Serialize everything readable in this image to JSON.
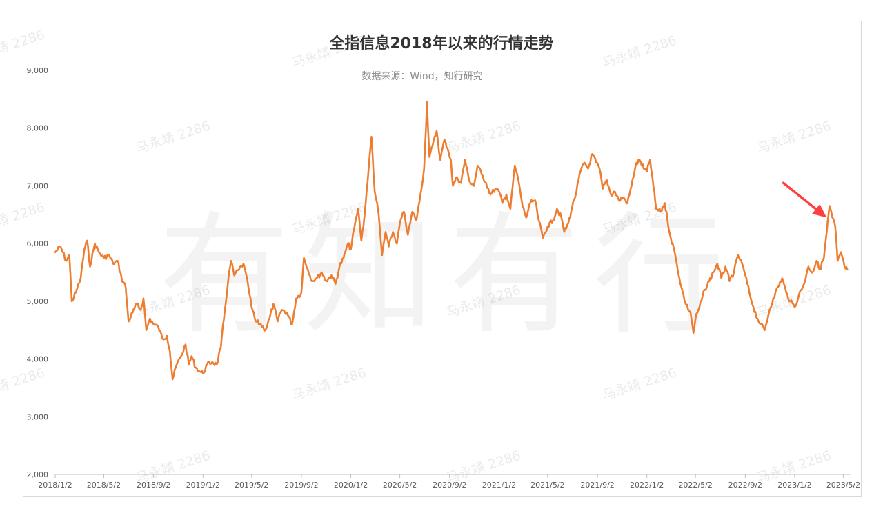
{
  "chart_data": {
    "type": "line",
    "title": "全指信息2018年以来的行情走势",
    "subtitle": "数据来源：Wind，知行研究",
    "xlabel": "",
    "ylabel": "",
    "ylim": [
      2000,
      9000
    ],
    "yticks": [
      2000,
      3000,
      4000,
      5000,
      6000,
      7000,
      8000,
      9000
    ],
    "ytick_labels": [
      "2,000",
      "3,000",
      "4,000",
      "5,000",
      "6,000",
      "7,000",
      "8,000",
      "9,000"
    ],
    "xlim": [
      "2018-01-02",
      "2023-05-20"
    ],
    "xticks": [
      "2018-01-02",
      "2018-05-02",
      "2018-09-02",
      "2019-01-02",
      "2019-05-02",
      "2019-09-02",
      "2020-01-02",
      "2020-05-02",
      "2020-09-02",
      "2021-01-02",
      "2021-05-02",
      "2021-09-02",
      "2022-01-02",
      "2022-05-02",
      "2022-09-02",
      "2023-01-02",
      "2023-05-02"
    ],
    "xtick_labels": [
      "2018/1/2",
      "2018/5/2",
      "2018/9/2",
      "2019/1/2",
      "2019/5/2",
      "2019/9/2",
      "2020/1/2",
      "2020/5/2",
      "2020/9/2",
      "2021/1/2",
      "2021/5/2",
      "2021/9/2",
      "2022/1/2",
      "2022/5/2",
      "2022/9/2",
      "2023/1/2",
      "2023/5/2"
    ],
    "grid": false,
    "series": [
      {
        "name": "",
        "color": "#ed7d31",
        "points": [
          [
            "2018-01-02",
            5850
          ],
          [
            "2018-01-15",
            5950
          ],
          [
            "2018-01-29",
            5700
          ],
          [
            "2018-02-06",
            5800
          ],
          [
            "2018-02-12",
            5000
          ],
          [
            "2018-02-22",
            5150
          ],
          [
            "2018-03-06",
            5400
          ],
          [
            "2018-03-15",
            5900
          ],
          [
            "2018-03-22",
            6050
          ],
          [
            "2018-03-29",
            5600
          ],
          [
            "2018-04-10",
            6000
          ],
          [
            "2018-04-20",
            5850
          ],
          [
            "2018-05-02",
            5750
          ],
          [
            "2018-05-15",
            5800
          ],
          [
            "2018-05-25",
            5650
          ],
          [
            "2018-06-05",
            5700
          ],
          [
            "2018-06-15",
            5400
          ],
          [
            "2018-06-25",
            5250
          ],
          [
            "2018-07-02",
            4650
          ],
          [
            "2018-07-12",
            4800
          ],
          [
            "2018-07-22",
            4950
          ],
          [
            "2018-08-01",
            4850
          ],
          [
            "2018-08-08",
            5050
          ],
          [
            "2018-08-15",
            4500
          ],
          [
            "2018-08-24",
            4700
          ],
          [
            "2018-09-02",
            4600
          ],
          [
            "2018-09-14",
            4550
          ],
          [
            "2018-09-24",
            4350
          ],
          [
            "2018-10-05",
            4400
          ],
          [
            "2018-10-12",
            4150
          ],
          [
            "2018-10-19",
            3650
          ],
          [
            "2018-10-29",
            3900
          ],
          [
            "2018-11-09",
            4050
          ],
          [
            "2018-11-20",
            4250
          ],
          [
            "2018-11-28",
            3900
          ],
          [
            "2018-12-05",
            4050
          ],
          [
            "2018-12-15",
            3850
          ],
          [
            "2018-12-26",
            3780
          ],
          [
            "2019-01-02",
            3750
          ],
          [
            "2019-01-12",
            3900
          ],
          [
            "2019-01-25",
            3950
          ],
          [
            "2019-02-05",
            3900
          ],
          [
            "2019-02-15",
            4200
          ],
          [
            "2019-02-25",
            4850
          ],
          [
            "2019-03-05",
            5350
          ],
          [
            "2019-03-12",
            5700
          ],
          [
            "2019-03-20",
            5450
          ],
          [
            "2019-04-01",
            5550
          ],
          [
            "2019-04-12",
            5650
          ],
          [
            "2019-04-24",
            5250
          ],
          [
            "2019-05-02",
            4900
          ],
          [
            "2019-05-12",
            4650
          ],
          [
            "2019-05-25",
            4600
          ],
          [
            "2019-06-05",
            4500
          ],
          [
            "2019-06-15",
            4700
          ],
          [
            "2019-06-25",
            4950
          ],
          [
            "2019-07-05",
            4650
          ],
          [
            "2019-07-15",
            4850
          ],
          [
            "2019-07-28",
            4800
          ],
          [
            "2019-08-10",
            4600
          ],
          [
            "2019-08-20",
            5050
          ],
          [
            "2019-09-02",
            5150
          ],
          [
            "2019-09-08",
            5750
          ],
          [
            "2019-09-18",
            5550
          ],
          [
            "2019-09-28",
            5350
          ],
          [
            "2019-10-10",
            5400
          ],
          [
            "2019-10-22",
            5500
          ],
          [
            "2019-11-02",
            5350
          ],
          [
            "2019-11-15",
            5450
          ],
          [
            "2019-11-25",
            5300
          ],
          [
            "2019-12-05",
            5600
          ],
          [
            "2019-12-15",
            5750
          ],
          [
            "2019-12-26",
            6000
          ],
          [
            "2020-01-02",
            5900
          ],
          [
            "2020-01-10",
            6250
          ],
          [
            "2020-01-20",
            6600
          ],
          [
            "2020-01-28",
            6050
          ],
          [
            "2020-02-05",
            6500
          ],
          [
            "2020-02-15",
            7300
          ],
          [
            "2020-02-22",
            7850
          ],
          [
            "2020-03-01",
            6900
          ],
          [
            "2020-03-10",
            6550
          ],
          [
            "2020-03-19",
            5800
          ],
          [
            "2020-03-28",
            6200
          ],
          [
            "2020-04-05",
            5950
          ],
          [
            "2020-04-15",
            6200
          ],
          [
            "2020-04-25",
            6000
          ],
          [
            "2020-05-02",
            6350
          ],
          [
            "2020-05-12",
            6550
          ],
          [
            "2020-05-22",
            6150
          ],
          [
            "2020-06-02",
            6550
          ],
          [
            "2020-06-12",
            6400
          ],
          [
            "2020-06-22",
            6850
          ],
          [
            "2020-07-01",
            7300
          ],
          [
            "2020-07-08",
            8450
          ],
          [
            "2020-07-14",
            7500
          ],
          [
            "2020-07-22",
            7700
          ],
          [
            "2020-08-01",
            7950
          ],
          [
            "2020-08-10",
            7450
          ],
          [
            "2020-08-20",
            7800
          ],
          [
            "2020-08-28",
            7650
          ],
          [
            "2020-09-05",
            7450
          ],
          [
            "2020-09-10",
            7000
          ],
          [
            "2020-09-20",
            7150
          ],
          [
            "2020-09-30",
            7050
          ],
          [
            "2020-10-10",
            7450
          ],
          [
            "2020-10-20",
            7100
          ],
          [
            "2020-11-01",
            7000
          ],
          [
            "2020-11-10",
            7350
          ],
          [
            "2020-11-20",
            7200
          ],
          [
            "2020-12-01",
            7050
          ],
          [
            "2020-12-12",
            6850
          ],
          [
            "2020-12-24",
            6950
          ],
          [
            "2021-01-02",
            6900
          ],
          [
            "2021-01-10",
            6700
          ],
          [
            "2021-01-20",
            6850
          ],
          [
            "2021-01-30",
            6600
          ],
          [
            "2021-02-10",
            7350
          ],
          [
            "2021-02-20",
            7050
          ],
          [
            "2021-03-01",
            6650
          ],
          [
            "2021-03-10",
            6450
          ],
          [
            "2021-03-20",
            6700
          ],
          [
            "2021-04-01",
            6750
          ],
          [
            "2021-04-10",
            6400
          ],
          [
            "2021-04-20",
            6100
          ],
          [
            "2021-05-02",
            6300
          ],
          [
            "2021-05-15",
            6400
          ],
          [
            "2021-05-25",
            6600
          ],
          [
            "2021-06-05",
            6450
          ],
          [
            "2021-06-12",
            6200
          ],
          [
            "2021-06-22",
            6350
          ],
          [
            "2021-07-02",
            6650
          ],
          [
            "2021-07-12",
            6900
          ],
          [
            "2021-07-22",
            7250
          ],
          [
            "2021-08-01",
            7400
          ],
          [
            "2021-08-10",
            7300
          ],
          [
            "2021-08-20",
            7550
          ],
          [
            "2021-08-30",
            7400
          ],
          [
            "2021-09-07",
            7300
          ],
          [
            "2021-09-15",
            6950
          ],
          [
            "2021-09-25",
            7100
          ],
          [
            "2021-10-05",
            6850
          ],
          [
            "2021-10-15",
            6900
          ],
          [
            "2021-10-25",
            6750
          ],
          [
            "2021-11-05",
            6800
          ],
          [
            "2021-11-15",
            6700
          ],
          [
            "2021-11-25",
            7000
          ],
          [
            "2021-12-05",
            7350
          ],
          [
            "2021-12-15",
            7450
          ],
          [
            "2021-12-25",
            7300
          ],
          [
            "2022-01-02",
            7250
          ],
          [
            "2022-01-10",
            7450
          ],
          [
            "2022-01-18",
            7000
          ],
          [
            "2022-01-25",
            6600
          ],
          [
            "2022-02-05",
            6550
          ],
          [
            "2022-02-15",
            6700
          ],
          [
            "2022-02-22",
            6400
          ],
          [
            "2022-03-02",
            6100
          ],
          [
            "2022-03-10",
            5900
          ],
          [
            "2022-03-18",
            5600
          ],
          [
            "2022-03-28",
            5250
          ],
          [
            "2022-04-08",
            4950
          ],
          [
            "2022-04-20",
            4800
          ],
          [
            "2022-04-27",
            4450
          ],
          [
            "2022-05-02",
            4700
          ],
          [
            "2022-05-12",
            4900
          ],
          [
            "2022-05-25",
            5200
          ],
          [
            "2022-06-05",
            5350
          ],
          [
            "2022-06-15",
            5500
          ],
          [
            "2022-06-25",
            5650
          ],
          [
            "2022-07-05",
            5400
          ],
          [
            "2022-07-15",
            5600
          ],
          [
            "2022-07-25",
            5350
          ],
          [
            "2022-08-05",
            5500
          ],
          [
            "2022-08-15",
            5800
          ],
          [
            "2022-08-25",
            5650
          ],
          [
            "2022-09-02",
            5450
          ],
          [
            "2022-09-12",
            5150
          ],
          [
            "2022-09-22",
            4900
          ],
          [
            "2022-10-02",
            4700
          ],
          [
            "2022-10-10",
            4600
          ],
          [
            "2022-10-20",
            4500
          ],
          [
            "2022-11-01",
            4850
          ],
          [
            "2022-11-10",
            5050
          ],
          [
            "2022-11-22",
            5250
          ],
          [
            "2022-12-02",
            5400
          ],
          [
            "2022-12-12",
            5150
          ],
          [
            "2022-12-22",
            5000
          ],
          [
            "2023-01-02",
            4900
          ],
          [
            "2023-01-12",
            5100
          ],
          [
            "2023-01-25",
            5300
          ],
          [
            "2023-02-05",
            5600
          ],
          [
            "2023-02-15",
            5500
          ],
          [
            "2023-02-25",
            5700
          ],
          [
            "2023-03-05",
            5550
          ],
          [
            "2023-03-15",
            5750
          ],
          [
            "2023-03-22",
            6200
          ],
          [
            "2023-03-29",
            6650
          ],
          [
            "2023-04-05",
            6450
          ],
          [
            "2023-04-12",
            6300
          ],
          [
            "2023-04-18",
            5700
          ],
          [
            "2023-04-26",
            5850
          ],
          [
            "2023-05-05",
            5600
          ],
          [
            "2023-05-12",
            5550
          ]
        ]
      }
    ],
    "annotations": [
      {
        "type": "arrow",
        "color": "#ff4040",
        "from": [
          "2022-12-05",
          7050
        ],
        "to": [
          "2023-03-22",
          6450
        ]
      }
    ],
    "watermarks": {
      "small": "马永靖 2286",
      "big": "有知有行"
    }
  }
}
